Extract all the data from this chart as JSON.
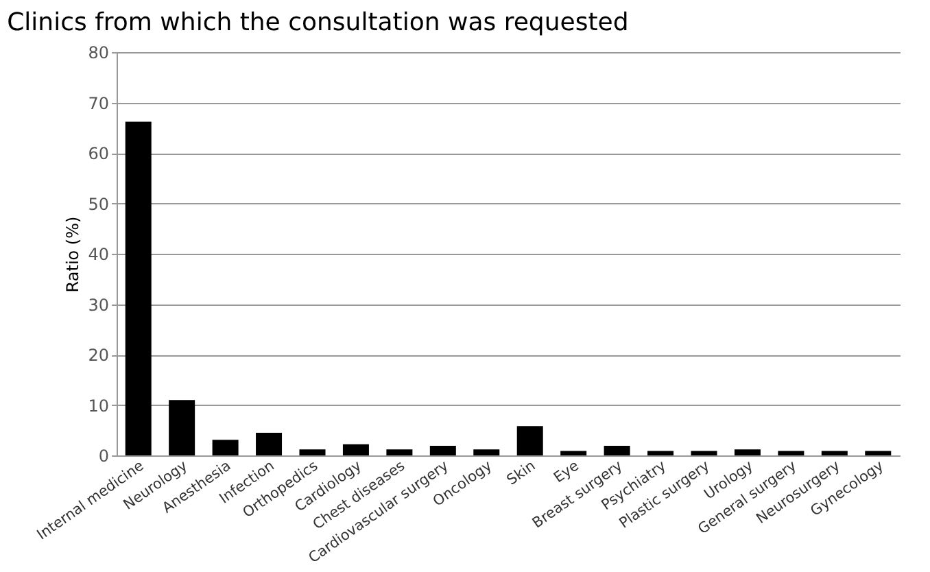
{
  "chart_data": {
    "type": "bar",
    "title": "Clinics from which the consultation was requested",
    "ylabel": "Ratio (%)",
    "categories": [
      "Internal medicine",
      "Neurology",
      "Anesthesia",
      "Infection",
      "Orthopedics",
      "Cardiology",
      "Chest diseases",
      "Cardiovascular surgery",
      "Oncology",
      "Skin",
      "Eye",
      "Breast surgery",
      "Psychiatry",
      "Plastic surgery",
      "Urology",
      "General surgery",
      "Neurosurgery",
      "Gynecology"
    ],
    "values": [
      66.2,
      11,
      3.1,
      4.5,
      1.2,
      2.2,
      1.2,
      1.9,
      1.2,
      5.8,
      0.9,
      1.9,
      0.9,
      0.9,
      1.2,
      0.9,
      0.9,
      0.9
    ],
    "color": "#000000",
    "ylim": [
      0,
      80
    ],
    "yticks": [
      0,
      10,
      20,
      30,
      40,
      50,
      60,
      70,
      80
    ],
    "grid": "y"
  }
}
